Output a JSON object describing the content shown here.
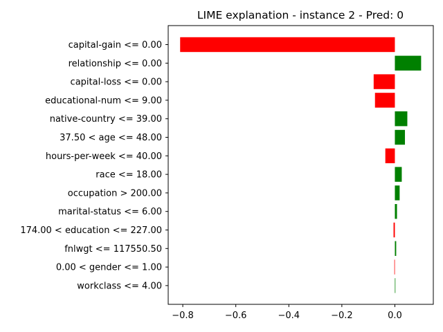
{
  "chart_data": {
    "type": "bar",
    "orientation": "horizontal",
    "title": "LIME explanation - instance 2 - Pred: 0",
    "xlabel": "",
    "ylabel": "",
    "xlim": [
      -0.855,
      0.145
    ],
    "xticks": [
      -0.8,
      -0.6,
      -0.4,
      -0.2,
      0.0
    ],
    "xtick_labels": [
      "−0.8",
      "−0.6",
      "−0.4",
      "−0.2",
      "0.0"
    ],
    "grid": false,
    "colors": {
      "positive": "#008000",
      "negative": "#ff0000"
    },
    "categories": [
      "capital-gain <= 0.00",
      "relationship <= 0.00",
      "capital-loss <= 0.00",
      "educational-num <= 9.00",
      "native-country <= 39.00",
      "37.50 < age <= 48.00",
      "hours-per-week <= 40.00",
      "race <= 18.00",
      "occupation > 200.00",
      "marital-status <= 6.00",
      "174.00 < education <= 227.00",
      "fnlwgt <= 117550.50",
      "0.00 < gender <= 1.00",
      "workclass <= 4.00"
    ],
    "values": [
      -0.81,
      0.099,
      -0.08,
      -0.075,
      0.047,
      0.038,
      -0.036,
      0.026,
      0.018,
      0.008,
      -0.005,
      0.005,
      -0.002,
      0.002
    ]
  }
}
